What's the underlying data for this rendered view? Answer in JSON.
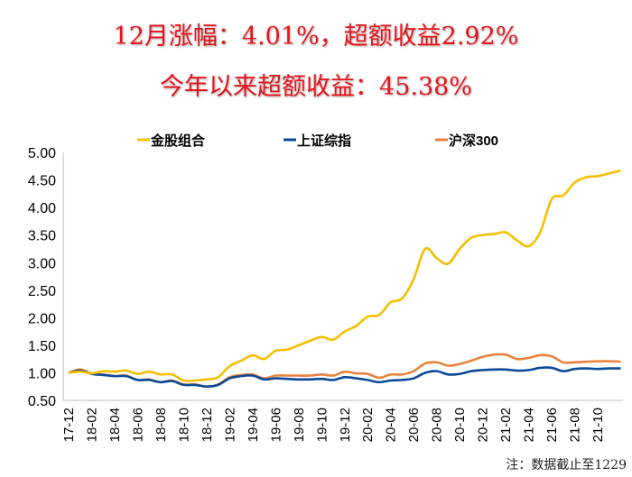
{
  "header": {
    "title_line1": "12月涨幅：4.01%，超额收益2.92%",
    "title_line2": "今年以来超额收益：45.38%"
  },
  "note": "注：数据截止至1229",
  "colors": {
    "title": "#e8141b",
    "gold": "#f5be00",
    "blue": "#0b4a96",
    "orange": "#e8823c"
  },
  "chart_data": {
    "type": "line",
    "title": "",
    "xlabel": "",
    "ylabel": "",
    "ylim": [
      0.5,
      5.0
    ],
    "yticks": [
      "5.00",
      "4.50",
      "4.00",
      "3.50",
      "3.00",
      "2.50",
      "2.00",
      "1.50",
      "1.00",
      "0.50"
    ],
    "grid": false,
    "legend_position": "top",
    "x": [
      "17-12",
      "18-01",
      "18-02",
      "18-03",
      "18-04",
      "18-05",
      "18-06",
      "18-07",
      "18-08",
      "18-09",
      "18-10",
      "18-11",
      "18-12",
      "19-01",
      "19-02",
      "19-03",
      "19-04",
      "19-05",
      "19-06",
      "19-07",
      "19-08",
      "19-09",
      "19-10",
      "19-11",
      "19-12",
      "20-01",
      "20-02",
      "20-03",
      "20-04",
      "20-05",
      "20-06",
      "20-07",
      "20-08",
      "20-09",
      "20-10",
      "20-11",
      "20-12",
      "21-01",
      "21-02",
      "21-03",
      "21-04",
      "21-05",
      "21-06",
      "21-07",
      "21-08",
      "21-09",
      "21-10",
      "21-11",
      "21-12"
    ],
    "xtick_labels": [
      "17-12",
      "18-02",
      "18-04",
      "18-06",
      "18-08",
      "18-10",
      "18-12",
      "19-02",
      "19-04",
      "19-06",
      "19-08",
      "19-10",
      "19-12",
      "20-02",
      "20-04",
      "20-06",
      "20-08",
      "20-10",
      "20-12",
      "21-02",
      "21-04",
      "21-06",
      "21-08",
      "21-10"
    ],
    "series": [
      {
        "name": "金股组合",
        "color": "#f5be00",
        "values": [
          1.0,
          1.02,
          0.99,
          1.03,
          1.02,
          1.04,
          0.98,
          1.02,
          0.97,
          0.97,
          0.86,
          0.86,
          0.88,
          0.92,
          1.12,
          1.22,
          1.32,
          1.25,
          1.4,
          1.42,
          1.5,
          1.58,
          1.65,
          1.6,
          1.75,
          1.85,
          2.02,
          2.05,
          2.28,
          2.35,
          2.7,
          3.25,
          3.08,
          2.98,
          3.25,
          3.45,
          3.5,
          3.52,
          3.55,
          3.4,
          3.3,
          3.55,
          4.15,
          4.22,
          4.45,
          4.55,
          4.57,
          4.62,
          4.67
        ]
      },
      {
        "name": "上证综指",
        "color": "#0b4a96",
        "values": [
          1.0,
          1.04,
          0.98,
          0.96,
          0.94,
          0.94,
          0.87,
          0.87,
          0.83,
          0.85,
          0.78,
          0.78,
          0.75,
          0.78,
          0.9,
          0.94,
          0.95,
          0.88,
          0.9,
          0.89,
          0.88,
          0.88,
          0.89,
          0.87,
          0.92,
          0.9,
          0.87,
          0.83,
          0.86,
          0.87,
          0.9,
          1.0,
          1.03,
          0.97,
          0.98,
          1.03,
          1.05,
          1.06,
          1.06,
          1.04,
          1.05,
          1.09,
          1.09,
          1.03,
          1.07,
          1.08,
          1.07,
          1.08,
          1.08
        ]
      },
      {
        "name": "沪深300",
        "color": "#e8823c",
        "values": [
          1.0,
          1.06,
          0.99,
          0.97,
          0.94,
          0.95,
          0.87,
          0.88,
          0.83,
          0.86,
          0.79,
          0.79,
          0.75,
          0.79,
          0.92,
          0.96,
          0.97,
          0.9,
          0.95,
          0.95,
          0.95,
          0.95,
          0.97,
          0.95,
          1.02,
          0.99,
          0.98,
          0.91,
          0.97,
          0.97,
          1.03,
          1.17,
          1.19,
          1.13,
          1.16,
          1.22,
          1.29,
          1.33,
          1.33,
          1.25,
          1.27,
          1.32,
          1.3,
          1.19,
          1.19,
          1.2,
          1.21,
          1.21,
          1.2
        ]
      }
    ]
  }
}
